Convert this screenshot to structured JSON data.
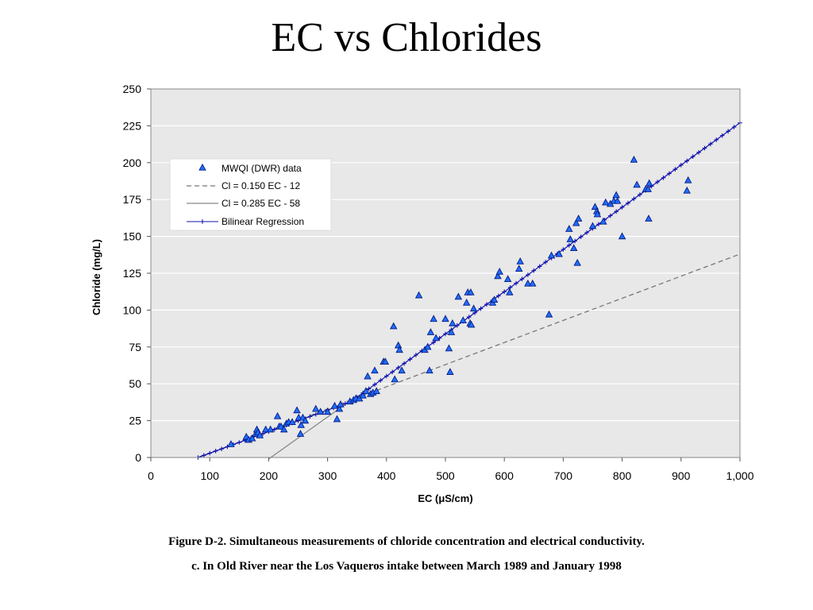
{
  "slide": {
    "title": "EC vs Chlorides",
    "caption_line1": "Figure D-2.  Simultaneous measurements of chloride concentration and electrical conductivity.",
    "caption_line2": "c.  In Old River near the Los Vaqueros intake between March 1989 and January 1998"
  },
  "chart_data": {
    "type": "scatter",
    "xlabel": "EC (μS/cm)",
    "ylabel": "Chloride (mg/L)",
    "xlim": [
      0,
      1000
    ],
    "ylim": [
      0,
      250
    ],
    "x_ticks": [
      0,
      100,
      200,
      300,
      400,
      500,
      600,
      700,
      800,
      900,
      1000
    ],
    "x_tick_labels": [
      "0",
      "100",
      "200",
      "300",
      "400",
      "500",
      "600",
      "700",
      "800",
      "900",
      "1,000"
    ],
    "y_ticks": [
      0,
      25,
      50,
      75,
      100,
      125,
      150,
      175,
      200,
      225,
      250
    ],
    "y_tick_labels": [
      "0",
      "25",
      "50",
      "75",
      "100",
      "125",
      "150",
      "175",
      "200",
      "225",
      "250"
    ],
    "grid": "horizontal",
    "background_color": "#e8e8e8",
    "legend_position": "upper-left",
    "series": [
      {
        "name": "MWQI (DWR) data",
        "kind": "markers",
        "marker": "triangle",
        "color": "#1e6fff",
        "points": [
          [
            136,
            9
          ],
          [
            162,
            14
          ],
          [
            166,
            12
          ],
          [
            172,
            13
          ],
          [
            178,
            16
          ],
          [
            180,
            19
          ],
          [
            182,
            17
          ],
          [
            185,
            15
          ],
          [
            195,
            19
          ],
          [
            203,
            19
          ],
          [
            215,
            28
          ],
          [
            218,
            21
          ],
          [
            221,
            21
          ],
          [
            226,
            19
          ],
          [
            230,
            23
          ],
          [
            234,
            24
          ],
          [
            240,
            24
          ],
          [
            248,
            32
          ],
          [
            251,
            27
          ],
          [
            254,
            16
          ],
          [
            255,
            22
          ],
          [
            258,
            27
          ],
          [
            262,
            25
          ],
          [
            280,
            33
          ],
          [
            288,
            31
          ],
          [
            300,
            31
          ],
          [
            312,
            35
          ],
          [
            316,
            26
          ],
          [
            320,
            33
          ],
          [
            322,
            36
          ],
          [
            338,
            38
          ],
          [
            344,
            39
          ],
          [
            348,
            40
          ],
          [
            354,
            40
          ],
          [
            360,
            42
          ],
          [
            365,
            45
          ],
          [
            368,
            55
          ],
          [
            373,
            43
          ],
          [
            377,
            44
          ],
          [
            380,
            59
          ],
          [
            383,
            45
          ],
          [
            395,
            65
          ],
          [
            398,
            65
          ],
          [
            412,
            89
          ],
          [
            414,
            53
          ],
          [
            420,
            76
          ],
          [
            422,
            73
          ],
          [
            426,
            59
          ],
          [
            455,
            110
          ],
          [
            465,
            73
          ],
          [
            470,
            75
          ],
          [
            473,
            59
          ],
          [
            475,
            85
          ],
          [
            480,
            94
          ],
          [
            484,
            81
          ],
          [
            500,
            94
          ],
          [
            506,
            74
          ],
          [
            508,
            58
          ],
          [
            510,
            85
          ],
          [
            512,
            91
          ],
          [
            522,
            109
          ],
          [
            530,
            93
          ],
          [
            536,
            105
          ],
          [
            538,
            112
          ],
          [
            543,
            112
          ],
          [
            542,
            91
          ],
          [
            544,
            90
          ],
          [
            548,
            101
          ],
          [
            580,
            105
          ],
          [
            583,
            107
          ],
          [
            589,
            123
          ],
          [
            592,
            126
          ],
          [
            606,
            121
          ],
          [
            609,
            112
          ],
          [
            625,
            128
          ],
          [
            627,
            133
          ],
          [
            640,
            118
          ],
          [
            648,
            118
          ],
          [
            676,
            97
          ],
          [
            680,
            137
          ],
          [
            693,
            138
          ],
          [
            710,
            155
          ],
          [
            712,
            148
          ],
          [
            718,
            142
          ],
          [
            722,
            159
          ],
          [
            724,
            132
          ],
          [
            726,
            162
          ],
          [
            750,
            157
          ],
          [
            754,
            170
          ],
          [
            757,
            167
          ],
          [
            758,
            165
          ],
          [
            768,
            160
          ],
          [
            772,
            173
          ],
          [
            780,
            172
          ],
          [
            786,
            174
          ],
          [
            790,
            178
          ],
          [
            792,
            174
          ],
          [
            800,
            150
          ],
          [
            820,
            202
          ],
          [
            825,
            185
          ],
          [
            840,
            182
          ],
          [
            844,
            182
          ],
          [
            846,
            186
          ],
          [
            845,
            162
          ],
          [
            910,
            181
          ],
          [
            912,
            188
          ]
        ]
      },
      {
        "name": "Cl = 0.150 EC - 12",
        "kind": "line",
        "style": "dashed",
        "color": "#777777",
        "slope": 0.15,
        "intercept": -12,
        "x_range": [
          80,
          1000
        ]
      },
      {
        "name": "Cl = 0.285 EC - 58",
        "kind": "line",
        "style": "solid",
        "color": "#888888",
        "slope": 0.285,
        "intercept": -58,
        "x_range": [
          200,
          330
        ]
      },
      {
        "name": "Bilinear Regression",
        "kind": "line_markers",
        "marker": "plus",
        "color": "#1010b0",
        "breakpoint": 340,
        "points": [
          [
            80,
            0
          ],
          [
            340,
            38
          ],
          [
            1000,
            227
          ]
        ],
        "marker_step": 10
      }
    ]
  }
}
